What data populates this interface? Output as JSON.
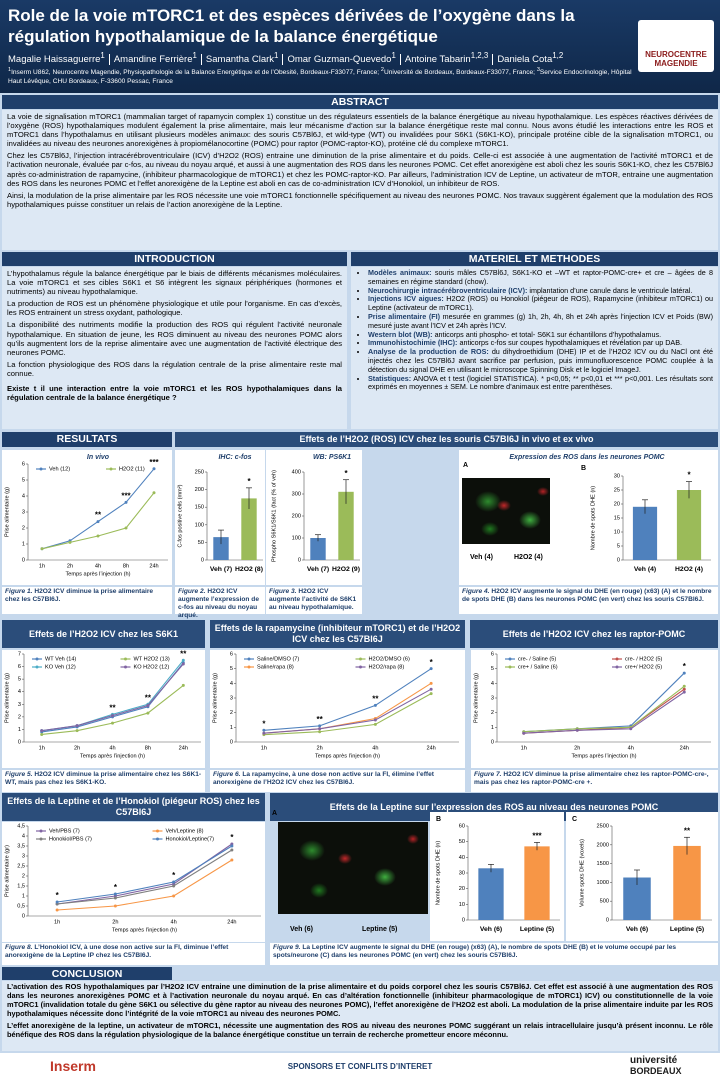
{
  "header": {
    "title": "Role de la voie mTORC1 et des espèces dérivées de l’oxygène dans la régulation hypothalamique de la balance énergétique",
    "authors": [
      {
        "name": "Magalie Haissaguerre",
        "aff": "1"
      },
      {
        "name": "Amandine Ferrière",
        "aff": "1"
      },
      {
        "name": "Samantha Clark",
        "aff": "1"
      },
      {
        "name": "Omar Guzman-Quevedo",
        "aff": "1"
      },
      {
        "name": "Antoine Tabarin",
        "aff": "1,2,3"
      },
      {
        "name": "Daniela Cota",
        "aff": "1,2"
      }
    ],
    "affiliations": [
      {
        "aff": "1",
        "text": "Inserm U862, Neurocentre Magendie, Physiopathologie de la Balance Energétique et de l’Obesité, Bordeaux-F33077, France;"
      },
      {
        "aff": "2",
        "text": "Université de Bordeaux, Bordeaux-F33077, France;"
      },
      {
        "aff": "3",
        "text": "Service Endocrinologie, Hôpital Haut Lévêque, CHU Bordeaux, F-33600 Pessac, France"
      }
    ],
    "logo": [
      "NEUROCENTRE",
      "MAGENDIE"
    ]
  },
  "abstract": {
    "heading": "ABSTRACT",
    "paragraphs": [
      "La voie de signalisation mTORC1 (mammalian target of rapamycin complex 1) constitue un des régulateurs essentiels de la balance énergétique au niveau hypothalamique. Les espèces réactives dérivées de l’oxygène (ROS) hypothalamiques modulent également la prise alimentaire, mais leur mécanisme d’action sur la balance énergétique reste mal connu. Nous avons étudié les interactions entre les ROS et mTORC1 dans l’hypothalamus en utilisant plusieurs modèles animaux: des souris C57Bl6J, et wild-type (WT) ou invalidées pour S6K1 (S6K1-KO), principale protéine cible de la signalisation mTORC1, ou invalidées au niveau des neurones anorexigènes à propiomélanocortine (POMC) pour raptor (POMC-raptor-KO), protéine clé du complexe mTORC1.",
      "Chez les C57Bl6J, l’injection intracérébroventriculaire (ICV) d’H2O2 (ROS) entraine une diminution de la prise alimentaire et du poids. Celle-ci est  associée à une augmentation de l’activité mTORC1 et de l’activation neuronale, évaluée par c-fos, au niveau du noyau arqué, et aussi à une augmentation des ROS dans les neurones POMC. Cet effet anorexigène est aboli chez les souris S6K1-KO, chez les C57Bl6J après co-administration de rapamycine, (inhibiteur pharmacologique de mTORC1) et chez les POMC-raptor-KO. Par ailleurs, l’administration ICV de Leptine, un activateur de mTOR, entraine une augmentation des ROS dans les neurones POMC et l’effet anorexigène de la Leptine est aboli en cas de co-administration ICV d’Honokiol, un inhibiteur de ROS.",
      "Ainsi,  la modulation de la prise alimentaire par les ROS nécessite une voie mTORC1 fonctionnelle spécifiquement au niveau des neurones POMC. Nos travaux suggèrent également que la modulation des ROS hypothalamiques puisse constituer un relais de l’action anorexigène de la Leptine."
    ]
  },
  "introduction": {
    "heading": "INTRODUCTION",
    "paragraphs": [
      "L’hypothalamus régule la balance énergétique par le biais de différents mécanismes moléculaires. La voie mTORC1 et ses cibles S6K1 et S6 intègrent les signaux périphériques (hormones et nutriments) au niveau hypothalamique.",
      "La production de ROS est un phénomène physiologique et utile pour l’organisme. En cas d’excès, les ROS entrainent un stress oxydant, pathologique.",
      "La disponibilité des nutriments modifie la production des ROS qui régulent l’activité neuronale hypothalamique. En situation de jeune, les ROS diminuent au niveau des neurones POMC alors qu’ils augmentent lors de la reprise alimentaire avec une augmentation de l’activité électrique des neurones POMC.",
      "La fonction physiologique des ROS dans la régulation centrale de la prise alimentaire reste mal connue."
    ],
    "question": "Existe t il une interaction entre la voie mTORC1 et les ROS hypothalamiques dans la régulation centrale de la balance énergétique ?"
  },
  "methods": {
    "heading": "MATERIEL ET METHODES",
    "items": [
      {
        "label": "Modèles animaux:",
        "text": "souris mâles C57Bl6J, S6K1-KO et –WT et raptor-POMC-cre+ et cre – âgées de 8 semaines en régime standard (chow)."
      },
      {
        "label": "Neurochirurgie intracérébroventriculaire (ICV):",
        "text": "implantation d’une canule dans le ventricule latéral."
      },
      {
        "label": "Injections ICV aigues:",
        "text": "H2O2 (ROS) ou Honokiol  (piégeur de ROS), Rapamycine (inhibiteur mTORC1) ou Leptine (activateur de mTORC1)."
      },
      {
        "label": "Prise alimentaire (FI)",
        "text": "mesurée en grammes (g) 1h, 2h, 4h, 8h et 24h après l’injection ICV et Poids (BW) mesuré juste avant l’ICV et 24h après l’ICV."
      },
      {
        "label": "Western blot (WB):",
        "text": "anticorps anti phospho- et total- S6K1 sur échantillons d’hypothalamus."
      },
      {
        "label": "Immunohistochimie (IHC):",
        "text": "anticorps c-fos sur coupes hypothalamiques et révélation par up DAB."
      },
      {
        "label": "Analyse de la production de ROS:",
        "text": "du dihydroethidium (DHE) IP et de l’H2O2 ICV ou du NaCl ont été injectés chez les C57Bl6J avant sacrifice par perfusion, puis immunofluorescence POMC couplée à la détection du signal DHE en utilisant le microscope Spinning Disk et le logiciel ImageJ."
      },
      {
        "label": "Statistiques:",
        "text": "ANOVA et t test (logiciel STATISTICA). * p<0,05; ** p<0,01 et *** p<0,001. Les résultats sont exprimés en moyennes ± SEM. Le nombre d’animaux est entre parenthèses."
      }
    ]
  },
  "results": {
    "heading": "RESULTATS",
    "sections": [
      "Effets de l’H2O2 (ROS) ICV chez les souris C57Bl6J in vivo et ex vivo",
      "Effets de l’H2O2 ICV chez les S6K1",
      "Effets de la rapamycine (inhibiteur mTORC1) et de l’H2O2 ICV chez les C57Bl6J",
      "Effets de l’H2O2 ICV chez les raptor-POMC",
      "Effets de la Leptine et de l’Honokiol (piégeur ROS) chez les C57Bl6J",
      "Effets de la Leptine sur l’expression des ROS au niveau des neurones POMC"
    ]
  },
  "images": [
    {
      "panel": "A",
      "labels": [
        "Veh (4)",
        "H2O2 (4)"
      ]
    },
    {
      "panel": "A",
      "labels": [
        "Veh (6)",
        "Leptine (5)"
      ]
    }
  ],
  "figures": [
    {
      "label": "Figure 1.",
      "text": "H2O2 ICV diminue la prise alimentaire chez les C57Bl6J."
    },
    {
      "label": "Figure 2.",
      "text": "H2O2 ICV augmente l’expression de c-fos au niveau du noyau arqué."
    },
    {
      "label": "Figure 3.",
      "text": "H2O2 ICV augmente l’activité de S6K1 au niveau hypothalamique."
    },
    {
      "label": "Figure 4.",
      "text": "H2O2 ICV augmente le signal du DHE (en rouge) (x63) (A) et le nombre de spots DHE (B) dans les neurones POMC (en vert) chez les souris C57Bl6J."
    },
    {
      "label": "Figure 5.",
      "text": "H2O2 ICV diminue la prise alimentaire chez les S6K1-WT, mais pas chez les S6K1-KO."
    },
    {
      "label": "Figure 6.",
      "text": "La rapamycine, à une dose non active sur la FI, élimine l’effet anorexigène de l’H2O2 ICV chez les C57Bl6J."
    },
    {
      "label": "Figure 7.",
      "text": "H2O2 ICV diminue la prise alimentaire chez les raptor-POMC-cre-, mais pas chez les raptor-POMC-cre +."
    },
    {
      "label": "Figure 8.",
      "text": "L’Honokiol ICV, à une dose non active sur la FI, diminue l’effet anorexigène de la Leptine IP chez les C57Bl6J."
    },
    {
      "label": "Figure 9.",
      "text": "La Leptine ICV augmente le signal du DHE (en rouge) (x63) (A), le nombre de spots DHE (B) et le volume occupé par les spots/neurone (C) dans les neurones POMC (en vert) chez les souris C57Bl6J."
    }
  ],
  "chart_data": [
    {
      "type": "line",
      "title": "In vivo",
      "xlabel": "Temps après l’injection (h)",
      "ylabel": "Prise alimentaire (g)",
      "categories": [
        "1h",
        "2h",
        "4h",
        "8h",
        "24h"
      ],
      "series": [
        {
          "name": "Veh  (12)",
          "color": "#4f81bd",
          "values": [
            0.7,
            1.2,
            2.4,
            3.6,
            5.7
          ]
        },
        {
          "name": "H2O2  (11)",
          "color": "#9bbb59",
          "values": [
            0.7,
            1.1,
            1.5,
            2.0,
            4.2
          ]
        }
      ],
      "significance": [
        null,
        null,
        "**",
        "***",
        "***"
      ],
      "ylim": [
        0,
        6
      ],
      "yticks": [
        0,
        1,
        2,
        3,
        4,
        5,
        6
      ],
      "grid": false,
      "legend": "top-left"
    },
    {
      "type": "bar",
      "title": "IHC: c-fos",
      "ylabel": "C-fos positive cells (mm²)",
      "categories": [
        "Veh (7)",
        "H2O2 (8)"
      ],
      "values": [
        65,
        175
      ],
      "errors": [
        20,
        30
      ],
      "colors": [
        "#4f81bd",
        "#9bbb59"
      ],
      "significance": [
        null,
        "*"
      ],
      "ylim": [
        0,
        250
      ],
      "yticks": [
        0,
        50,
        100,
        150,
        200,
        250
      ],
      "grid": false
    },
    {
      "type": "bar",
      "title": "WB: PS6K1",
      "ylabel": "Phospho S6K1/S6K1 (fact (% of veh)",
      "categories": [
        "Veh (7)",
        "H2O2 (9)"
      ],
      "values": [
        100,
        310
      ],
      "errors": [
        15,
        55
      ],
      "colors": [
        "#4f81bd",
        "#9bbb59"
      ],
      "significance": [
        null,
        "*"
      ],
      "ylim": [
        0,
        400
      ],
      "yticks": [
        0,
        100,
        200,
        300,
        400
      ],
      "grid": false
    },
    {
      "type": "bar",
      "title": "Expression des ROS dans les neurones POMC",
      "panel": "B",
      "ylabel": "Nombre de spots DHE (n)",
      "categories": [
        "Veh (4)",
        "H2O2 (4)"
      ],
      "values": [
        19,
        25
      ],
      "errors": [
        2.5,
        3
      ],
      "colors": [
        "#4f81bd",
        "#9bbb59"
      ],
      "significance": [
        null,
        "*"
      ],
      "ylim": [
        0,
        30
      ],
      "yticks": [
        0,
        5,
        10,
        15,
        20,
        25,
        30
      ],
      "grid": false
    },
    {
      "type": "line",
      "xlabel": "Temps après l’injection (h)",
      "ylabel": "Prise alimentaire (g)",
      "categories": [
        "1h",
        "2h",
        "4h",
        "8h",
        "24h"
      ],
      "series": [
        {
          "name": "WT Veh  (14)",
          "color": "#4f81bd",
          "values": [
            0.8,
            1.2,
            2.0,
            2.8,
            6.3
          ]
        },
        {
          "name": "WT H2O2  (13)",
          "color": "#9bbb59",
          "values": [
            0.6,
            0.9,
            1.5,
            2.3,
            4.5
          ]
        },
        {
          "name": "KO Veh  (12)",
          "color": "#4bacc6",
          "values": [
            0.9,
            1.3,
            2.2,
            3.0,
            6.5
          ]
        },
        {
          "name": "KO H2O2 (12)",
          "color": "#8064a2",
          "values": [
            0.9,
            1.3,
            2.1,
            2.9,
            6.2
          ]
        }
      ],
      "significance": [
        null,
        null,
        "**",
        "**",
        "**"
      ],
      "ylim": [
        0,
        7
      ],
      "yticks": [
        0,
        1,
        2,
        3,
        4,
        5,
        6,
        7
      ],
      "grid": false,
      "legend": "top-left"
    },
    {
      "type": "line",
      "xlabel": "Temps après l’injection (h)",
      "ylabel": "Prise alimentaire (g)",
      "categories": [
        "1h",
        "2h",
        "4h",
        "24h"
      ],
      "series": [
        {
          "name": "Saline/DMSO (7)",
          "color": "#4f81bd",
          "values": [
            0.8,
            1.1,
            2.5,
            5.0
          ]
        },
        {
          "name": "H2O2/DMSO  (6)",
          "color": "#9bbb59",
          "values": [
            0.5,
            0.7,
            1.2,
            3.3
          ]
        },
        {
          "name": "Saline/rapa  (8)",
          "color": "#f79646",
          "values": [
            0.6,
            0.9,
            1.6,
            4.0
          ]
        },
        {
          "name": "H2O2/rapa  (8)",
          "color": "#8064a2",
          "values": [
            0.6,
            0.9,
            1.5,
            3.6
          ]
        }
      ],
      "significance": [
        "*",
        "**",
        "**",
        "*"
      ],
      "ylim": [
        0,
        6
      ],
      "yticks": [
        0,
        1,
        2,
        3,
        4,
        5,
        6
      ],
      "grid": false,
      "legend": "top-left"
    },
    {
      "type": "line",
      "xlabel": "Temps après l’injection (h)",
      "ylabel": "Prise alimentaire (g)",
      "categories": [
        "1h",
        "2h",
        "4h",
        "24h"
      ],
      "series": [
        {
          "name": "cre- / Saline (5)",
          "color": "#4f81bd",
          "values": [
            0.7,
            0.9,
            1.1,
            4.7
          ]
        },
        {
          "name": "cre- / H2O2 (5)",
          "color": "#c0504d",
          "values": [
            0.6,
            0.8,
            1.0,
            3.6
          ]
        },
        {
          "name": "cre+ / Saline (6)",
          "color": "#9bbb59",
          "values": [
            0.7,
            0.9,
            1.0,
            3.8
          ]
        },
        {
          "name": "cre+/ H2O2 (5)",
          "color": "#8064a2",
          "values": [
            0.6,
            0.8,
            0.9,
            3.4
          ]
        }
      ],
      "significance": [
        null,
        null,
        null,
        "*"
      ],
      "ylim": [
        0,
        6
      ],
      "yticks": [
        0,
        1,
        2,
        3,
        4,
        5,
        6
      ],
      "grid": false,
      "legend": "top-left"
    },
    {
      "type": "line",
      "xlabel": "Temps après l’injection (h)",
      "ylabel": "Prise alimentaire (gr)",
      "categories": [
        "1h",
        "2h",
        "4h",
        "24h"
      ],
      "series": [
        {
          "name": "Veh/PBS  (7)",
          "color": "#8064a2",
          "values": [
            0.6,
            1.0,
            1.6,
            3.6
          ]
        },
        {
          "name": "Veh/Leptine (8)",
          "color": "#f79646",
          "values": [
            0.3,
            0.5,
            1.0,
            2.8
          ]
        },
        {
          "name": "Honokiol/PBS  (7)",
          "color": "#7f7f7f",
          "values": [
            0.6,
            0.9,
            1.5,
            3.3
          ]
        },
        {
          "name": "Honokiol/Leptine(7)",
          "color": "#4f81bd",
          "values": [
            0.7,
            1.1,
            1.7,
            3.5
          ]
        }
      ],
      "significance": [
        "*",
        "*",
        "*",
        "*"
      ],
      "ylim": [
        0,
        4.5
      ],
      "yticks": [
        0,
        {
          "value": 0.5,
          "label": "0,5"
        },
        1,
        {
          "value": 1.5,
          "label": "1,5"
        },
        2,
        {
          "value": 2.5,
          "label": "2,5"
        },
        3,
        {
          "value": 3.5,
          "label": "3,5"
        },
        4,
        {
          "value": 4.5,
          "label": "4,5"
        }
      ],
      "grid": false,
      "legend": "top-left"
    },
    {
      "type": "bar",
      "panel": "B",
      "ylabel": "Nombre de spots DHE (n)",
      "categories": [
        "Veh (6)",
        "Leptine (5)"
      ],
      "values": [
        33,
        47
      ],
      "errors": [
        2.5,
        2.5
      ],
      "colors": [
        "#4f81bd",
        "#f79646"
      ],
      "significance": [
        null,
        "***"
      ],
      "ylim": [
        0,
        60
      ],
      "yticks": [
        0,
        10,
        20,
        30,
        40,
        50,
        60
      ],
      "grid": false
    },
    {
      "type": "bar",
      "panel": "C",
      "ylabel": "Volume spots DHE (voxels)",
      "categories": [
        "Veh (6)",
        "Leptine (5)"
      ],
      "values": [
        1130,
        1970
      ],
      "errors": [
        200,
        230
      ],
      "colors": [
        "#4f81bd",
        "#f79646"
      ],
      "significance": [
        null,
        "**"
      ],
      "ylim": [
        0,
        2500
      ],
      "yticks": [
        0,
        500,
        1000,
        1500,
        2000,
        2500
      ],
      "grid": false
    }
  ],
  "conclusion": {
    "heading": "CONCLUSION",
    "paragraphs": [
      "L’activation des ROS hypothalamiques par l’H2O2 ICV entraine une diminution de la prise alimentaire et du poids corporel chez les souris C57Bl6J. Cet effet est associé à une augmentation des ROS dans les neurones anorexigènes POMC et à l’activation neuronale du noyau arqué. En cas d’altération fonctionnelle (inhibiteur pharmacologique de mTORC1) ICV) ou constitutionnelle de la voie mTORC1 (invalidation totale du gène S6K1 ou sélective du gène raptor au niveau des neurones POMC), l’effet anorexigène de l’H2O2 est aboli. La modulation de la prise alimentaire induite par les ROS hypothalamiques nécessite donc l’intégrité de la voie mTORC1 au niveau des neurones POMC.",
      "L’effet anorexigène de la leptine, un activateur de mTORC1, nécessite une augmentation des ROS au niveau des neurones POMC suggérant un relais intracellulaire jusqu’à présent inconnu. Le rôle bénéfique des ROS dans la régulation physiologique de la balance énergétique constitue un terrain de recherche prometteur encore méconnu."
    ]
  },
  "footer": {
    "logos": [
      "Inserm",
      "université",
      "BORDEAUX"
    ],
    "sponsors": "SPONSORS ET CONFLITS D’INTERET"
  }
}
